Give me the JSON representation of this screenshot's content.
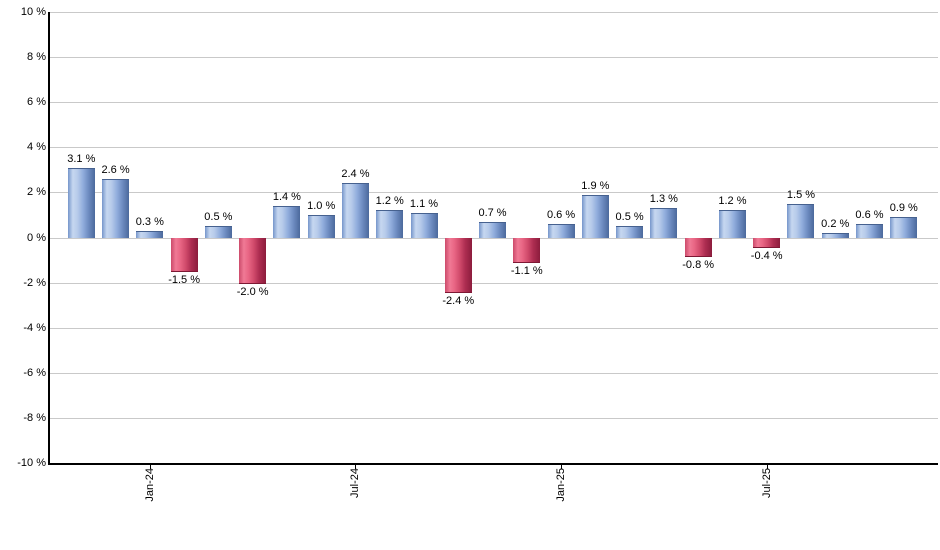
{
  "chart_data": {
    "type": "bar",
    "title": "",
    "xlabel": "",
    "ylabel": "",
    "unit": "%",
    "grid": true,
    "legend_position": "none",
    "values": [
      3.1,
      2.6,
      0.3,
      -1.5,
      0.5,
      -2.0,
      1.4,
      1.0,
      2.4,
      1.2,
      1.1,
      -2.4,
      0.7,
      -1.1,
      0.6,
      1.9,
      0.5,
      1.3,
      -0.8,
      1.2,
      -0.4,
      1.5,
      0.2,
      0.6,
      0.9
    ],
    "bar_labels": [
      "3.1 %",
      "2.6 %",
      "0.3 %",
      "-1.5 %",
      "0.5 %",
      "-2.0 %",
      "1.4 %",
      "1.0 %",
      "2.4 %",
      "1.2 %",
      "1.1 %",
      "-2.4 %",
      "0.7 %",
      "-1.1 %",
      "0.6 %",
      "1.9 %",
      "0.5 %",
      "1.3 %",
      "-0.8 %",
      "1.2 %",
      "-0.4 %",
      "1.5 %",
      "0.2 %",
      "0.6 %",
      "0.9 %"
    ],
    "y_axis": {
      "min": -10,
      "max": 10,
      "tick_step": 2,
      "tick_values": [
        10,
        8,
        6,
        4,
        2,
        0,
        -2,
        -4,
        -6,
        -8,
        -10
      ],
      "tick_labels": [
        "10 %",
        "8 %",
        "6 %",
        "4 %",
        "2 %",
        "0 %",
        "-2 %",
        "-4 %",
        "-6 %",
        "-8 %",
        "-10 %"
      ]
    },
    "x_axis": {
      "ticks": [
        {
          "label": "Jan-24",
          "bar_index": 2
        },
        {
          "label": "Jul-24",
          "bar_index": 8
        },
        {
          "label": "Jan-25",
          "bar_index": 14
        },
        {
          "label": "Jul-25",
          "bar_index": 20
        }
      ]
    },
    "colors": {
      "positive_bar_gradient": [
        "#7696cb",
        "#c6d7f0",
        "#b7cbea",
        "#92aedd",
        "#6f8dc2",
        "#4b699c"
      ],
      "negative_bar_gradient": [
        "#cc4a6b",
        "#f07a95",
        "#e86584",
        "#d04a6b",
        "#ad2d51",
        "#8c1c3c"
      ],
      "gridline": "#c9c9c9",
      "axis": "#000000",
      "text": "#000000",
      "background": "#ffffff"
    }
  }
}
